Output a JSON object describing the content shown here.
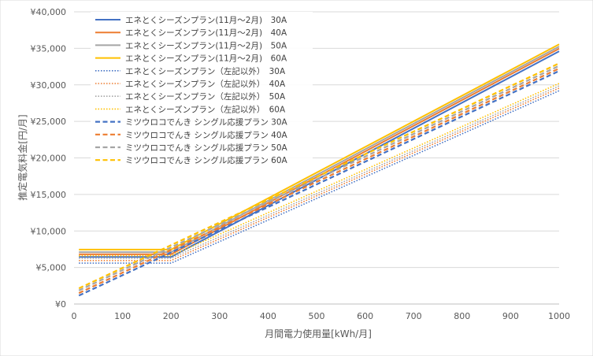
{
  "chart_data": {
    "type": "line",
    "title": "",
    "xlabel": "月間電力使用量[kWh/月]",
    "ylabel": "推定電気料金[円/月]",
    "xlim": [
      0,
      1000
    ],
    "ylim": [
      0,
      40000
    ],
    "x_ticks": [
      "0",
      "100",
      "200",
      "300",
      "400",
      "500",
      "600",
      "700",
      "800",
      "900",
      "1000"
    ],
    "y_ticks": [
      "¥0",
      "¥5,000",
      "¥10,000",
      "¥15,000",
      "¥20,000",
      "¥25,000",
      "¥30,000",
      "¥35,000",
      "¥40,000"
    ],
    "grid": "horizontal",
    "legend_position": "top-left",
    "series": [
      {
        "name": "エネとくシーズンプラン(11月～2月)　30A",
        "color": "#4472C4",
        "dash": "solid",
        "points": [
          [
            10,
            6450
          ],
          [
            200,
            6450
          ],
          [
            1000,
            34600
          ]
        ]
      },
      {
        "name": "エネとくシーズンプラン(11月～2月)　40A",
        "color": "#ED7D31",
        "dash": "solid",
        "points": [
          [
            10,
            6800
          ],
          [
            200,
            6800
          ],
          [
            1000,
            34950
          ]
        ]
      },
      {
        "name": "エネとくシーズンプラン(11月～2月)　50A",
        "color": "#A5A5A5",
        "dash": "solid",
        "points": [
          [
            10,
            7100
          ],
          [
            200,
            7100
          ],
          [
            1000,
            35250
          ]
        ]
      },
      {
        "name": "エネとくシーズンプラン(11月～2月)　60A",
        "color": "#FFC000",
        "dash": "solid",
        "points": [
          [
            10,
            7450
          ],
          [
            200,
            7450
          ],
          [
            1000,
            35550
          ]
        ]
      },
      {
        "name": "エネとくシーズンプラン（左記以外）　30A",
        "color": "#4472C4",
        "dash": "dot",
        "points": [
          [
            10,
            5600
          ],
          [
            200,
            5600
          ],
          [
            1000,
            29200
          ]
        ]
      },
      {
        "name": "エネとくシーズンプラン（左記以外）　40A",
        "color": "#ED7D31",
        "dash": "dot",
        "points": [
          [
            10,
            5950
          ],
          [
            200,
            5950
          ],
          [
            1000,
            29550
          ]
        ]
      },
      {
        "name": "エネとくシーズンプラン（左記以外）　50A",
        "color": "#A5A5A5",
        "dash": "dot",
        "points": [
          [
            10,
            6250
          ],
          [
            200,
            6250
          ],
          [
            1000,
            29850
          ]
        ]
      },
      {
        "name": "エネとくシーズンプラン（左記以外）　60A",
        "color": "#FFC000",
        "dash": "dot",
        "points": [
          [
            10,
            6600
          ],
          [
            200,
            6600
          ],
          [
            1000,
            30200
          ]
        ]
      },
      {
        "name": "ミツウロコでんき シングル応援プラン 30A",
        "color": "#4472C4",
        "dash": "dash",
        "points": [
          [
            10,
            1150
          ],
          [
            1000,
            31900
          ]
        ]
      },
      {
        "name": "ミツウロコでんき シングル応援プラン 40A",
        "color": "#ED7D31",
        "dash": "dash",
        "points": [
          [
            10,
            1500
          ],
          [
            1000,
            32250
          ]
        ]
      },
      {
        "name": "ミツウロコでんき シングル応援プラン 50A",
        "color": "#A5A5A5",
        "dash": "dash",
        "points": [
          [
            10,
            1850
          ],
          [
            1000,
            32600
          ]
        ]
      },
      {
        "name": "ミツウロコでんき シングル応援プラン 60A",
        "color": "#FFC000",
        "dash": "dash",
        "points": [
          [
            10,
            2150
          ],
          [
            1000,
            32950
          ]
        ]
      }
    ]
  }
}
